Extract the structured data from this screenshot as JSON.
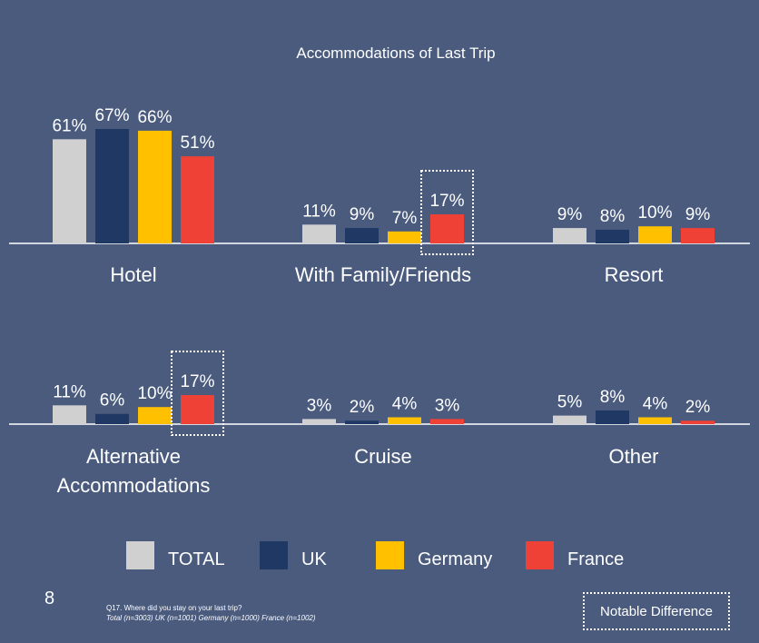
{
  "chart_data": {
    "type": "bar",
    "title": "Accommodations of Last Trip",
    "ylim": [
      0,
      70
    ],
    "series": [
      {
        "name": "TOTAL",
        "color": "#d0d0d0"
      },
      {
        "name": "UK",
        "color": "#1f3864"
      },
      {
        "name": "Germany",
        "color": "#ffc000"
      },
      {
        "name": "France",
        "color": "#f04136"
      }
    ],
    "panels": [
      {
        "category": "Hotel",
        "values": [
          61,
          67,
          66,
          51
        ],
        "labels": [
          "61%",
          "67%",
          "66%",
          "51%"
        ],
        "highlight": null
      },
      {
        "category": "With Family/Friends",
        "values": [
          11,
          9,
          7,
          17
        ],
        "labels": [
          "11%",
          "9%",
          "7%",
          "17%"
        ],
        "highlight": 3
      },
      {
        "category": "Resort",
        "values": [
          9,
          8,
          10,
          9
        ],
        "labels": [
          "9%",
          "8%",
          "10%",
          "9%"
        ],
        "highlight": null
      },
      {
        "category": "Alternative Accommodations",
        "category_lines": [
          "Alternative",
          "Accommodations"
        ],
        "values": [
          11,
          6,
          10,
          17
        ],
        "labels": [
          "11%",
          "6%",
          "10%",
          "17%"
        ],
        "highlight": 3
      },
      {
        "category": "Cruise",
        "values": [
          3,
          2,
          4,
          3
        ],
        "labels": [
          "3%",
          "2%",
          "4%",
          "3%"
        ],
        "highlight": null
      },
      {
        "category": "Other",
        "values": [
          5,
          8,
          4,
          2
        ],
        "labels": [
          "5%",
          "8%",
          "4%",
          "2%"
        ],
        "highlight": null
      }
    ],
    "legend_position": "bottom",
    "grid": false
  },
  "footer": {
    "page_number": "8",
    "question": "Q17. Where did you stay on your last trip?",
    "sample": "Total (n=3003) UK (n=1001) Germany (n=1000) France (n=1002)",
    "notable_label": "Notable Difference"
  }
}
